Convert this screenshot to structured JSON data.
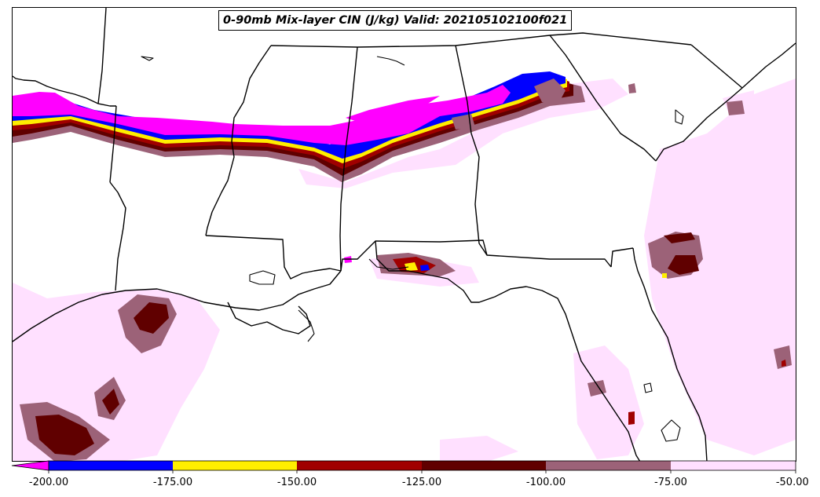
{
  "title": "0-90mb Mix-layer CIN (J/kg) Valid: 202105102100f021",
  "colorbar": {
    "ticks": [
      "-200.00",
      "-175.00",
      "-150.00",
      "-125.00",
      "-100.00",
      "-75.00",
      "-50.00"
    ],
    "colors": [
      "#ff00ff",
      "#0000ff",
      "#ffee00",
      "#a00000",
      "#600000",
      "#9c6278",
      "#ffe0ff"
    ],
    "extend": "min"
  },
  "map": {
    "region": "Southeastern United States and Gulf of Mexico",
    "border_color": "#000000",
    "background": "#ffffff"
  }
}
